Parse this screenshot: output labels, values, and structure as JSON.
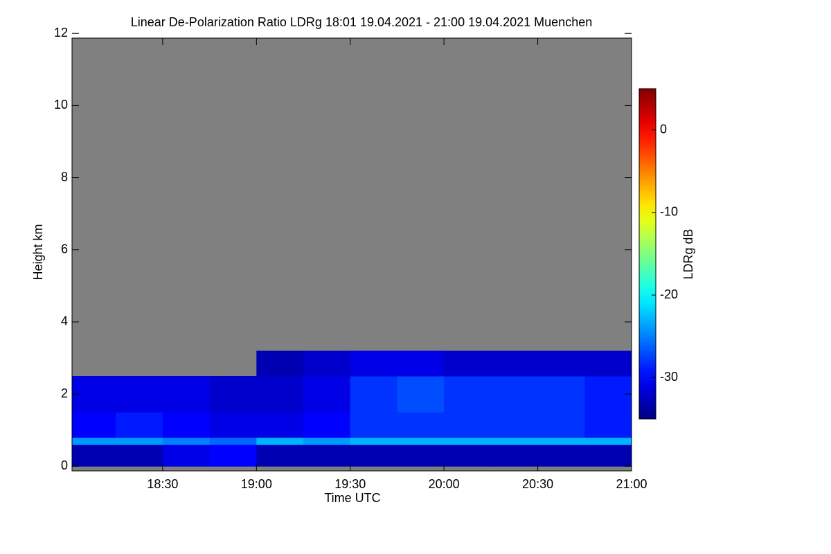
{
  "chart_data": {
    "type": "heatmap",
    "title": "Linear De-Polarization Ratio LDRg   18:01 19.04.2021 - 21:00 19.04.2021 Muenchen",
    "x_label": "Time UTC",
    "y_label": "Height km",
    "xlim": [
      18.0167,
      21.0
    ],
    "xticks": [
      {
        "value": 18.5,
        "label": "18:30"
      },
      {
        "value": 19.0,
        "label": "19:00"
      },
      {
        "value": 19.5,
        "label": "19:30"
      },
      {
        "value": 20.0,
        "label": "20:00"
      },
      {
        "value": 20.5,
        "label": "20:30"
      },
      {
        "value": 21.0,
        "label": "21:00"
      }
    ],
    "ylim": [
      -0.13,
      11.87
    ],
    "yticks": [
      0,
      2,
      4,
      6,
      8,
      10,
      12
    ],
    "x": [
      18.0167,
      18.25,
      18.5,
      18.75,
      19.0,
      19.25,
      19.5,
      19.75,
      20.0,
      20.25,
      20.5,
      20.75,
      21.0
    ],
    "y": [
      0,
      0.6,
      0.8,
      1.5,
      2.5,
      3.2
    ],
    "z": [
      [
        -33,
        -33,
        -31,
        -30,
        -33,
        -33,
        -33,
        -33,
        -33,
        -33,
        -33,
        -33
      ],
      [
        -24,
        -24,
        -25,
        -26,
        -23,
        -24,
        -23,
        -23,
        -23,
        -23,
        -23,
        -23
      ],
      [
        -30,
        -29,
        -30,
        -31,
        -31,
        -30,
        -28,
        -28,
        -28,
        -28,
        -28,
        -29
      ],
      [
        -31,
        -31,
        -31,
        -32,
        -32,
        -31,
        -28,
        -27,
        -28,
        -28,
        -28,
        -29
      ],
      [
        null,
        null,
        null,
        null,
        -33,
        -32,
        -31,
        -31,
        -32,
        -32,
        -32,
        -32
      ]
    ],
    "colormap": "jet",
    "missing_color": "#808080",
    "colorbar": {
      "label": "LDRg dB",
      "lim": [
        -35,
        5
      ],
      "ticks": [
        -30,
        -20,
        -10,
        0
      ]
    }
  }
}
